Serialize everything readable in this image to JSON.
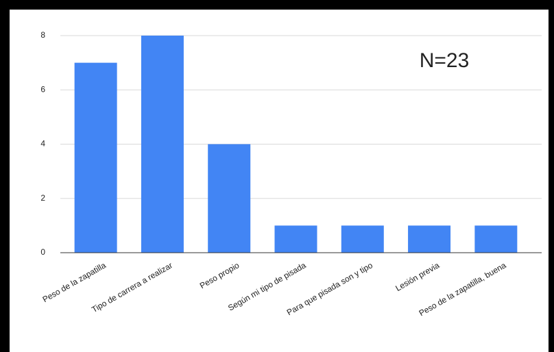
{
  "chart_data": {
    "type": "bar",
    "categories": [
      "Peso de la zapatilla",
      "Tipo de carrera a realizar",
      "Peso propio",
      "Según mi tipo de pisada",
      "Para que pisada son y tipo",
      "Lesión previa",
      "Peso de la zapatilla, buena"
    ],
    "values": [
      7,
      8,
      4,
      1,
      1,
      1,
      1
    ],
    "color": "#4285f4",
    "ylim": [
      0,
      8
    ],
    "yticks": [
      0,
      2,
      4,
      6,
      8
    ],
    "grid": true,
    "annotation": "N=23"
  }
}
